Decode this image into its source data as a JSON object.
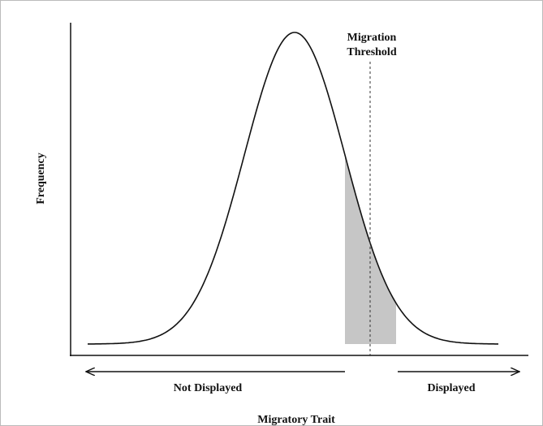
{
  "threshold_label": [
    "Migration",
    "Threshold"
  ],
  "y_axis_label": "Frequency",
  "x_axis_label": "Migratory Trait",
  "left_arrow_label": "Not Displayed",
  "right_arrow_label": "Displayed"
}
